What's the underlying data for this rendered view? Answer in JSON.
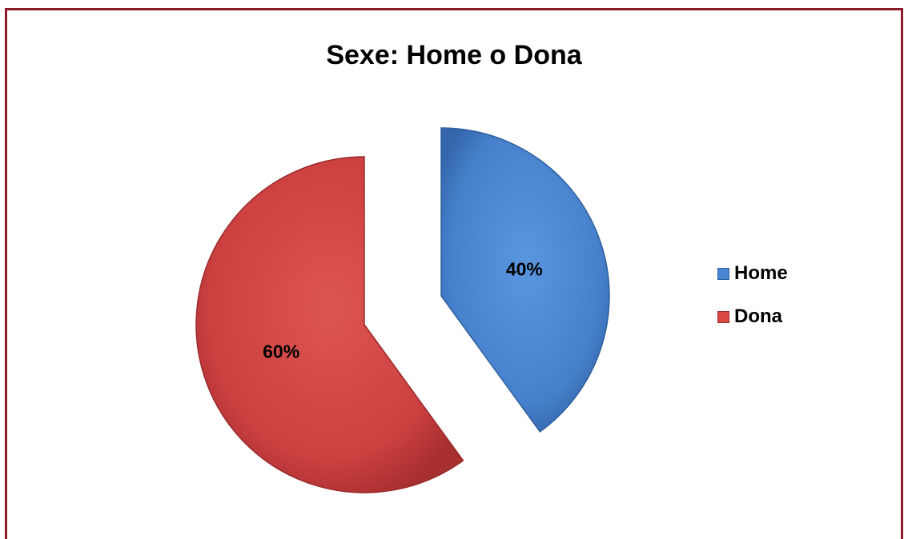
{
  "chart_data": {
    "type": "pie",
    "title": "Sexe: Home o Dona",
    "categories": [
      "Home",
      "Dona"
    ],
    "values": [
      40,
      60
    ],
    "value_labels": [
      "40%",
      "60%"
    ],
    "colors": [
      "#4a86d4",
      "#d94845"
    ],
    "exploded": true,
    "legend_position": "right"
  }
}
